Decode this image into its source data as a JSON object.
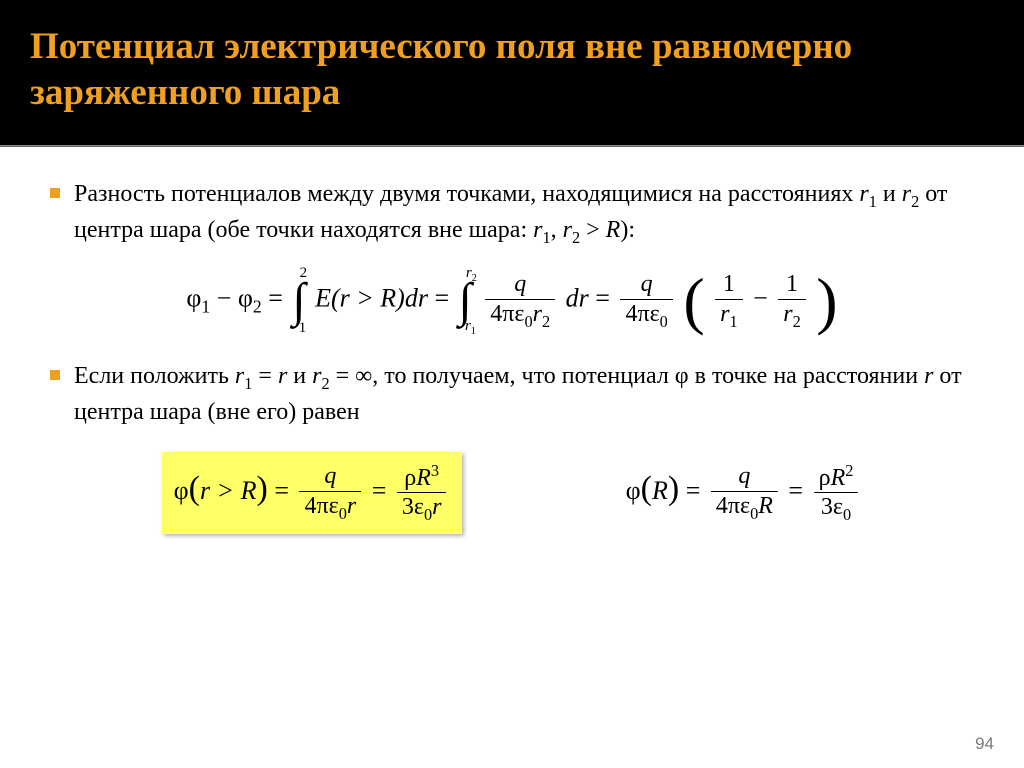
{
  "colors": {
    "header_bg": "#000000",
    "title_color": "#f0a020",
    "bullet_color": "#f0a020",
    "highlight_bg": "#ffff66",
    "body_bg": "#ffffff",
    "text_color": "#000000",
    "pagenum_color": "#7a7a7a",
    "divider_color": "#888888"
  },
  "typography": {
    "title_fontsize": 37,
    "title_weight": "bold",
    "body_fontsize": 24,
    "equation_fontsize": 26,
    "font_family": "Times New Roman"
  },
  "title": "Потенциал электрического поля вне равномерно заряженного шара",
  "bullet1": {
    "prefix": "Разность потенциалов между двумя точками, находящимися на расстояниях ",
    "r1": "r",
    "r1_sub": "1",
    "and": " и ",
    "r2": "r",
    "r2_sub": "2",
    "mid": " от центра шара (обе точки находятся вне шара: ",
    "cond_r1": "r",
    "cond_r1_sub": "1",
    "comma": ", ",
    "cond_r2": "r",
    "cond_r2_sub": "2",
    "gt": " > ",
    "R": "R",
    "end": "):"
  },
  "equation1": {
    "lhs_phi1": "φ",
    "lhs_sub1": "1",
    "minus": " − ",
    "lhs_phi2": "φ",
    "lhs_sub2": "2",
    "eq": " = ",
    "int1_top": "2",
    "int1_bot": "1",
    "int1_body": "E(r > R)dr",
    "int2_top_r": "r",
    "int2_top_sub": "2",
    "int2_bot_r": "r",
    "int2_bot_sub": "1",
    "frac_q_num": "q",
    "frac_q_den_4pi": "4πε",
    "frac_q_den_sub0": "0",
    "frac_q_den_r": "r",
    "frac_q_den_rsub": "2",
    "dr": "dr",
    "frac2_num": "q",
    "frac2_den_4pi": "4πε",
    "frac2_den_sub0": "0",
    "paren_f1_num": "1",
    "paren_f1_den_r": "r",
    "paren_f1_den_sub": "1",
    "paren_minus": " − ",
    "paren_f2_num": "1",
    "paren_f2_den_r": "r",
    "paren_f2_den_sub": "2"
  },
  "bullet2": {
    "prefix": "Если положить ",
    "r1": "r",
    "r1_sub": "1",
    "eq1": " = ",
    "r": "r",
    "and": " и ",
    "r2": "r",
    "r2_sub": "2",
    "eq2": " = ∞, то получаем, что потенциал φ в точке на расстоянии ",
    "r_mid": "r",
    "suffix": " от центра шара (вне его) равен"
  },
  "equation2_left": {
    "phi": "φ",
    "arg": "r > R",
    "eq": " = ",
    "f1_num": "q",
    "f1_den_4pi": "4πε",
    "f1_den_sub0": "0",
    "f1_den_r": "r",
    "f2_num_rho": "ρ",
    "f2_num_R": "R",
    "f2_num_exp": "3",
    "f2_den_3eps": "3ε",
    "f2_den_sub0": "0",
    "f2_den_r": "r"
  },
  "equation2_right": {
    "phi": "φ",
    "arg": "R",
    "eq": " = ",
    "f1_num": "q",
    "f1_den_4pi": "4πε",
    "f1_den_sub0": "0",
    "f1_den_R": "R",
    "f2_num_rho": "ρ",
    "f2_num_R": "R",
    "f2_num_exp": "2",
    "f2_den_3eps": "3ε",
    "f2_den_sub0": "0"
  },
  "page_number": "94"
}
